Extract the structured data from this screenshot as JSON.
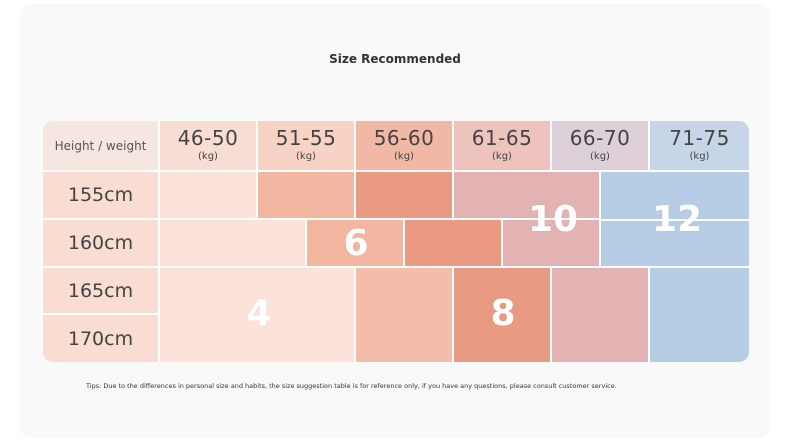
{
  "title": "Size Recommended",
  "corner_label": "Height / weight",
  "unit": "(kg)",
  "columns": [
    "46-50",
    "51-55",
    "56-60",
    "61-65",
    "66-70",
    "71-75"
  ],
  "rows": [
    "155cm",
    "160cm",
    "165cm",
    "170cm"
  ],
  "sizes": [
    "4",
    "6",
    "8",
    "10",
    "12"
  ],
  "tip": "Tips: Due to the differences in personal size and habits, the size suggestion table is for reference only, if you have any questions, please consult customer service.",
  "colors": {
    "header": [
      "#f7ddd2",
      "#f6d3c5",
      "#f2b8a6",
      "#eebcb8",
      "#ddd0d8",
      "#c6d6e8"
    ],
    "size_4": "#fbe3da",
    "size_6": "#f3b6a1",
    "size_6_dark": "#ec9c84",
    "size_8": "#ea9c84",
    "size_8_light": "#f2b7a3",
    "size_10": "#e3b3b3",
    "size_12": "#b7cce5",
    "row_label": "#f9dcd2"
  }
}
